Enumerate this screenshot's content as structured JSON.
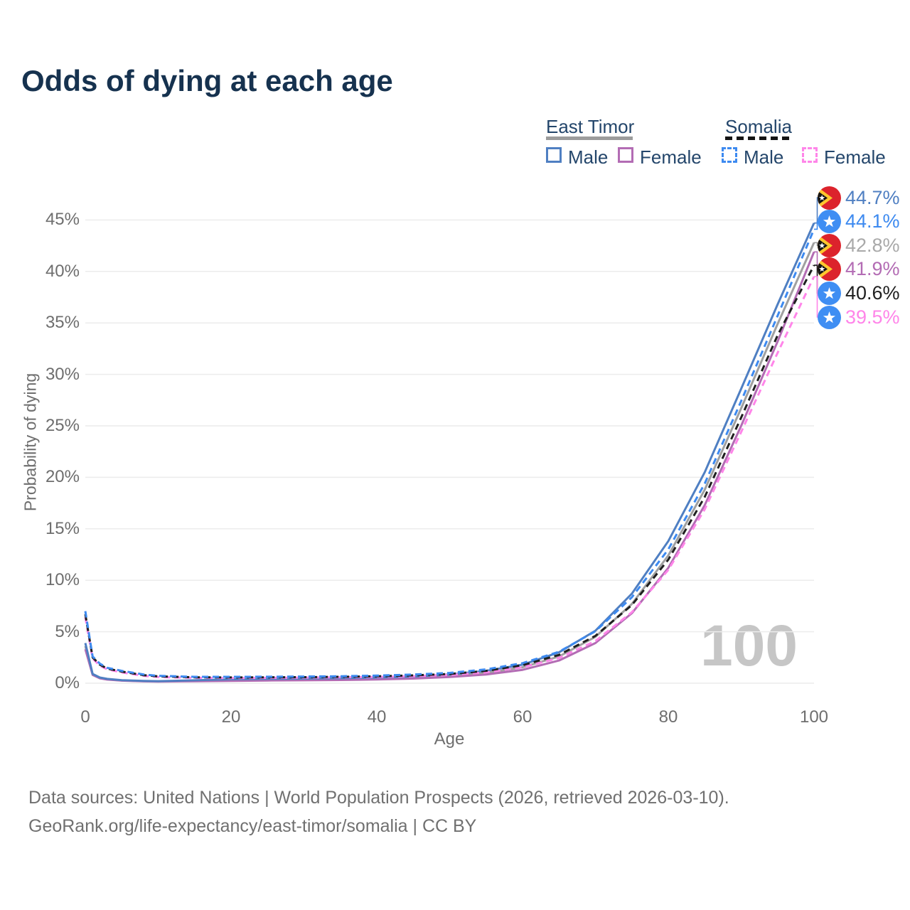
{
  "title": "Odds of dying at each age",
  "legend": {
    "groups": [
      {
        "label": "East Timor",
        "line_style": "solid",
        "style_color": "#9c9c9c",
        "items": [
          {
            "label": "Male",
            "color": "#4f7fc2"
          },
          {
            "label": "Female",
            "color": "#b36cb4"
          }
        ]
      },
      {
        "label": "Somalia",
        "line_style": "dashed",
        "style_color": "#141414",
        "items": [
          {
            "label": "Male",
            "color": "#3d8af0"
          },
          {
            "label": "Female",
            "color": "#ff85e9"
          }
        ]
      }
    ]
  },
  "chart_data": {
    "type": "line",
    "title": "Odds of dying at each age",
    "x_label": "Age",
    "y_label": "Probability of dying",
    "x_ticks": [
      "0",
      "20",
      "40",
      "60",
      "80",
      "100"
    ],
    "x_tick_values": [
      0,
      20,
      40,
      60,
      80,
      100
    ],
    "y_ticks": [
      "0%",
      "5%",
      "10%",
      "15%",
      "20%",
      "25%",
      "30%",
      "35%",
      "40%",
      "45%"
    ],
    "y_tick_values": [
      0,
      5,
      10,
      15,
      20,
      25,
      30,
      35,
      40,
      45
    ],
    "xlim": [
      0,
      100
    ],
    "ylim_pct": [
      0,
      47
    ],
    "grid": "horizontal",
    "legend_position": "top-right",
    "watermark": "100",
    "ages": [
      0,
      1,
      2,
      3,
      5,
      8,
      10,
      15,
      20,
      25,
      30,
      35,
      40,
      45,
      50,
      55,
      60,
      65,
      70,
      75,
      80,
      85,
      90,
      95,
      100
    ],
    "series": [
      {
        "name": "East Timor — Male",
        "country": "east-timor",
        "sex": "male",
        "color": "#4f7fc2",
        "dash": "solid",
        "end_value_pct": 44.7,
        "values": [
          3.9,
          0.9,
          0.55,
          0.42,
          0.3,
          0.22,
          0.2,
          0.28,
          0.38,
          0.42,
          0.45,
          0.48,
          0.55,
          0.65,
          0.85,
          1.2,
          1.8,
          3.0,
          5.1,
          8.7,
          13.8,
          20.5,
          28.6,
          36.8,
          44.7
        ]
      },
      {
        "name": "East Timor — Female",
        "country": "east-timor",
        "sex": "female",
        "color": "#b36cb4",
        "dash": "solid",
        "end_value_pct": 41.9,
        "values": [
          3.3,
          0.8,
          0.47,
          0.35,
          0.25,
          0.18,
          0.16,
          0.19,
          0.23,
          0.26,
          0.28,
          0.31,
          0.36,
          0.45,
          0.6,
          0.85,
          1.3,
          2.2,
          3.9,
          6.8,
          11.2,
          17.3,
          25.0,
          33.2,
          41.9
        ]
      },
      {
        "name": "East Timor — Both sexes",
        "country": "east-timor",
        "sex": "both",
        "color": "#a0a0a0",
        "dash": "solid",
        "end_value_pct": 42.8,
        "values": [
          3.6,
          0.85,
          0.51,
          0.38,
          0.27,
          0.2,
          0.18,
          0.24,
          0.3,
          0.34,
          0.36,
          0.39,
          0.45,
          0.55,
          0.72,
          1.0,
          1.55,
          2.6,
          4.5,
          7.7,
          12.4,
          18.8,
          26.7,
          34.9,
          42.8
        ]
      },
      {
        "name": "Somalia — Male",
        "country": "somalia",
        "sex": "male",
        "color": "#3d8af0",
        "dash": "dashed",
        "end_value_pct": 44.1,
        "values": [
          7.0,
          2.6,
          1.9,
          1.5,
          1.2,
          0.85,
          0.72,
          0.62,
          0.62,
          0.63,
          0.65,
          0.68,
          0.74,
          0.84,
          1.0,
          1.35,
          1.95,
          3.05,
          5.05,
          8.35,
          13.0,
          19.4,
          27.4,
          35.7,
          44.1
        ]
      },
      {
        "name": "Somalia — Female",
        "country": "somalia",
        "sex": "female",
        "color": "#ff85e9",
        "dash": "dashed",
        "end_value_pct": 39.5,
        "values": [
          6.4,
          2.4,
          1.7,
          1.35,
          1.05,
          0.72,
          0.6,
          0.52,
          0.5,
          0.52,
          0.54,
          0.57,
          0.61,
          0.68,
          0.8,
          1.05,
          1.55,
          2.45,
          4.1,
          6.9,
          11.0,
          16.9,
          24.4,
          32.1,
          39.5
        ]
      },
      {
        "name": "Somalia — Both sexes",
        "country": "somalia",
        "sex": "both",
        "color": "#1f1f1f",
        "dash": "dashed",
        "end_value_pct": 40.6,
        "values": [
          6.7,
          2.5,
          1.8,
          1.42,
          1.13,
          0.78,
          0.66,
          0.57,
          0.56,
          0.57,
          0.59,
          0.62,
          0.67,
          0.76,
          0.9,
          1.2,
          1.75,
          2.75,
          4.6,
          7.6,
          12.0,
          18.1,
          25.8,
          33.8,
          40.6
        ]
      }
    ]
  },
  "end_labels": [
    {
      "value": "44.7%",
      "color": "#4f7fc2",
      "flag": "east-timor",
      "series_index": 0
    },
    {
      "value": "44.1%",
      "color": "#3d8af0",
      "flag": "somalia",
      "series_index": 3
    },
    {
      "value": "42.8%",
      "color": "#a9a9a9",
      "flag": "east-timor",
      "series_index": 2
    },
    {
      "value": "41.9%",
      "color": "#b36cb4",
      "flag": "east-timor",
      "series_index": 1
    },
    {
      "value": "40.6%",
      "color": "#1f1f1f",
      "flag": "somalia",
      "series_index": 5
    },
    {
      "value": "39.5%",
      "color": "#ff85e9",
      "flag": "somalia",
      "series_index": 4
    }
  ],
  "flag_colors": {
    "east_timor_red": "#dc232c",
    "east_timor_yellow": "#ffc72e",
    "east_timor_black": "#141414",
    "somalia_blue": "#3f8ef3",
    "star_white": "#ffffff"
  },
  "footer": {
    "line1": "Data sources: United Nations | World Population Prospects (2026, retrieved 2026-03-10).",
    "line2": "GeoRank.org/life-expectancy/east-timor/somalia | CC BY"
  }
}
